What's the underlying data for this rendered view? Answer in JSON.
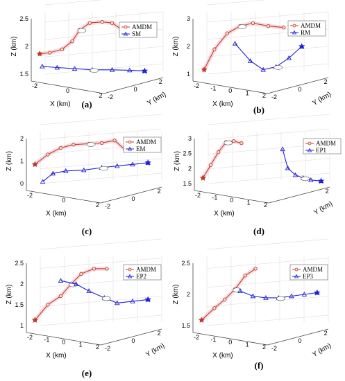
{
  "figure": {
    "colors": {
      "amdm": "#c0392b",
      "other": "#1f1fd6",
      "halo": "#f4c6cf",
      "grid": "#e3e3e3",
      "axis": "#444444"
    },
    "panels": [
      {
        "id": "a",
        "label": "(a)",
        "xlabel": "X (km)",
        "ylabel": "Y (km)",
        "zlabel": "Z (km)",
        "zticks": [
          "1.5",
          "2",
          "2.5"
        ],
        "xticks": [
          "-2",
          "0",
          "2"
        ],
        "yticks": [
          "-2",
          "0",
          "2"
        ],
        "legend": [
          "AMDM",
          "SM"
        ],
        "chart_data": {
          "type": "scatter",
          "series": [
            {
              "name": "AMDM",
              "marker": "circle",
              "points": [
                [
                  -2.3,
                  1.0
                ],
                [
                  -1.9,
                  1.05
                ],
                [
                  -1.4,
                  1.2
                ],
                [
                  -1.0,
                  1.55
                ],
                [
                  -0.7,
                  2.05
                ],
                [
                  -0.3,
                  2.35
                ],
                [
                  0.2,
                  2.4
                ],
                [
                  0.6,
                  2.35
                ],
                [
                  1.0,
                  2.05
                ]
              ]
            },
            {
              "name": "SM",
              "marker": "triangle",
              "points": [
                [
                  -2.2,
                  0.45
                ],
                [
                  -1.6,
                  0.4
                ],
                [
                  -0.9,
                  0.35
                ],
                [
                  -0.2,
                  0.3
                ],
                [
                  0.6,
                  0.3
                ],
                [
                  1.3,
                  0.28
                ],
                [
                  1.9,
                  0.25
                ]
              ]
            }
          ],
          "start_marker": "star"
        }
      },
      {
        "id": "b",
        "label": "(b)",
        "xlabel": "X (km)",
        "ylabel": "Y (km)",
        "zlabel": "Z (km)",
        "zticks": [
          "1",
          "2",
          "3"
        ],
        "xticks": [
          "-2",
          "-1",
          "0",
          "1",
          "2"
        ],
        "yticks": [
          "-2",
          "0",
          "2"
        ],
        "legend": [
          "AMDM",
          "RM"
        ],
        "chart_data": {
          "type": "scatter",
          "series": [
            {
              "name": "AMDM",
              "marker": "circle",
              "points": [
                [
                  -2.2,
                  1.3
                ],
                [
                  -1.8,
                  2.0
                ],
                [
                  -1.3,
                  2.55
                ],
                [
                  -0.8,
                  2.8
                ],
                [
                  -0.3,
                  2.9
                ],
                [
                  0.3,
                  2.8
                ],
                [
                  0.9,
                  2.75
                ]
              ]
            },
            {
              "name": "RM",
              "marker": "triangle",
              "points": [
                [
                  -1.0,
                  2.2
                ],
                [
                  -0.4,
                  1.6
                ],
                [
                  0.1,
                  1.3
                ],
                [
                  0.6,
                  1.4
                ],
                [
                  1.1,
                  1.7
                ],
                [
                  1.6,
                  2.1
                ]
              ]
            }
          ],
          "start_marker": "star"
        }
      },
      {
        "id": "c",
        "label": "(c)",
        "xlabel": "X (km)",
        "ylabel": "",
        "zlabel": "Z (km)",
        "zticks": [
          "0",
          "1",
          "2"
        ],
        "xticks": [
          "-2",
          "0",
          "2"
        ],
        "yticks": [
          "-2",
          "0",
          "2"
        ],
        "legend": [
          "AMDM",
          "EM"
        ],
        "chart_data": {
          "type": "scatter",
          "series": [
            {
              "name": "AMDM",
              "marker": "circle",
              "points": [
                [
                  -2.3,
                  1.1
                ],
                [
                  -1.8,
                  1.7
                ],
                [
                  -1.3,
                  2.1
                ],
                [
                  -0.8,
                  2.3
                ],
                [
                  -0.2,
                  2.35
                ],
                [
                  0.3,
                  2.4
                ],
                [
                  0.8,
                  2.55
                ],
                [
                  1.2,
                  2.0
                ]
              ]
            },
            {
              "name": "EM",
              "marker": "triangle",
              "points": [
                [
                  -2.0,
                  0.05
                ],
                [
                  -1.6,
                  0.55
                ],
                [
                  -1.1,
                  0.7
                ],
                [
                  -0.4,
                  0.75
                ],
                [
                  0.3,
                  0.9
                ],
                [
                  0.9,
                  1.0
                ],
                [
                  1.5,
                  1.1
                ],
                [
                  2.1,
                  1.2
                ]
              ]
            }
          ],
          "start_marker": "star"
        }
      },
      {
        "id": "d",
        "label": "(d)",
        "xlabel": "X (km)",
        "ylabel": "Y (km)",
        "zlabel": "Z (km)",
        "zticks": [
          "1.5",
          "2",
          "2.5",
          "3"
        ],
        "xticks": [
          "-2",
          "-1",
          "0",
          "1",
          "2"
        ],
        "yticks": [
          "2"
        ],
        "legend": [
          "AMDM",
          "EP1"
        ],
        "chart_data": {
          "type": "scatter",
          "series": [
            {
              "name": "AMDM",
              "marker": "circle",
              "points": [
                [
                  -2.3,
                  1.1
                ],
                [
                  -2.0,
                  1.75
                ],
                [
                  -1.7,
                  2.4
                ],
                [
                  -1.4,
                  2.9
                ],
                [
                  -1.1,
                  2.95
                ],
                [
                  -0.8,
                  2.85
                ]
              ]
            },
            {
              "name": "EP1",
              "marker": "triangle",
              "points": [
                [
                  0.8,
                  2.55
                ],
                [
                  1.0,
                  1.6
                ],
                [
                  1.3,
                  1.25
                ],
                [
                  1.6,
                  1.1
                ],
                [
                  1.9,
                  1.0
                ],
                [
                  2.3,
                  0.95
                ]
              ]
            }
          ],
          "start_marker": "star"
        }
      },
      {
        "id": "e",
        "label": "(e)",
        "xlabel": "X (km)",
        "ylabel": "Y (km)",
        "zlabel": "Z (km)",
        "zticks": [
          "1",
          "1.5",
          "2",
          "2.5"
        ],
        "xticks": [
          "-2",
          "-1",
          "0",
          "1",
          "2"
        ],
        "yticks": [
          "-2",
          "0",
          "2"
        ],
        "legend": [
          "AMDM",
          "EP2"
        ],
        "chart_data": {
          "type": "scatter",
          "series": [
            {
              "name": "AMDM",
              "marker": "circle",
              "points": [
                [
                  -2.3,
                  1.05
                ],
                [
                  -1.8,
                  1.5
                ],
                [
                  -1.3,
                  1.75
                ],
                [
                  -0.9,
                  2.1
                ],
                [
                  -0.5,
                  2.4
                ],
                [
                  0.0,
                  2.55
                ],
                [
                  0.5,
                  2.55
                ]
              ]
            },
            {
              "name": "EP2",
              "marker": "triangle",
              "points": [
                [
                  -1.3,
                  2.2
                ],
                [
                  -0.7,
                  2.1
                ],
                [
                  -0.2,
                  1.9
                ],
                [
                  0.4,
                  1.7
                ],
                [
                  0.9,
                  1.55
                ],
                [
                  1.5,
                  1.6
                ],
                [
                  2.1,
                  1.65
                ]
              ]
            }
          ],
          "start_marker": "star"
        }
      },
      {
        "id": "f",
        "label": "(f)",
        "xlabel": "X (km)",
        "ylabel": "Y (km)",
        "zlabel": "Z (km)",
        "zticks": [
          "1.5",
          "2",
          "2.5"
        ],
        "xticks": [
          "-2",
          "-1",
          "0",
          "1",
          "2"
        ],
        "yticks": [
          "-2",
          "0",
          "2"
        ],
        "legend": [
          "AMDM",
          "EP3"
        ],
        "chart_data": {
          "type": "scatter",
          "series": [
            {
              "name": "AMDM",
              "marker": "circle",
              "points": [
                [
                  -2.3,
                  1.05
                ],
                [
                  -1.8,
                  1.4
                ],
                [
                  -1.4,
                  1.65
                ],
                [
                  -1.0,
                  1.95
                ],
                [
                  -0.6,
                  2.35
                ],
                [
                  -0.2,
                  2.55
                ]
              ]
            },
            {
              "name": "EP3",
              "marker": "triangle",
              "points": [
                [
                  -0.8,
                  1.9
                ],
                [
                  -0.3,
                  1.75
                ],
                [
                  0.2,
                  1.7
                ],
                [
                  0.7,
                  1.7
                ],
                [
                  1.2,
                  1.75
                ],
                [
                  1.7,
                  1.8
                ],
                [
                  2.2,
                  1.85
                ]
              ]
            }
          ],
          "start_marker": "star"
        }
      }
    ]
  }
}
